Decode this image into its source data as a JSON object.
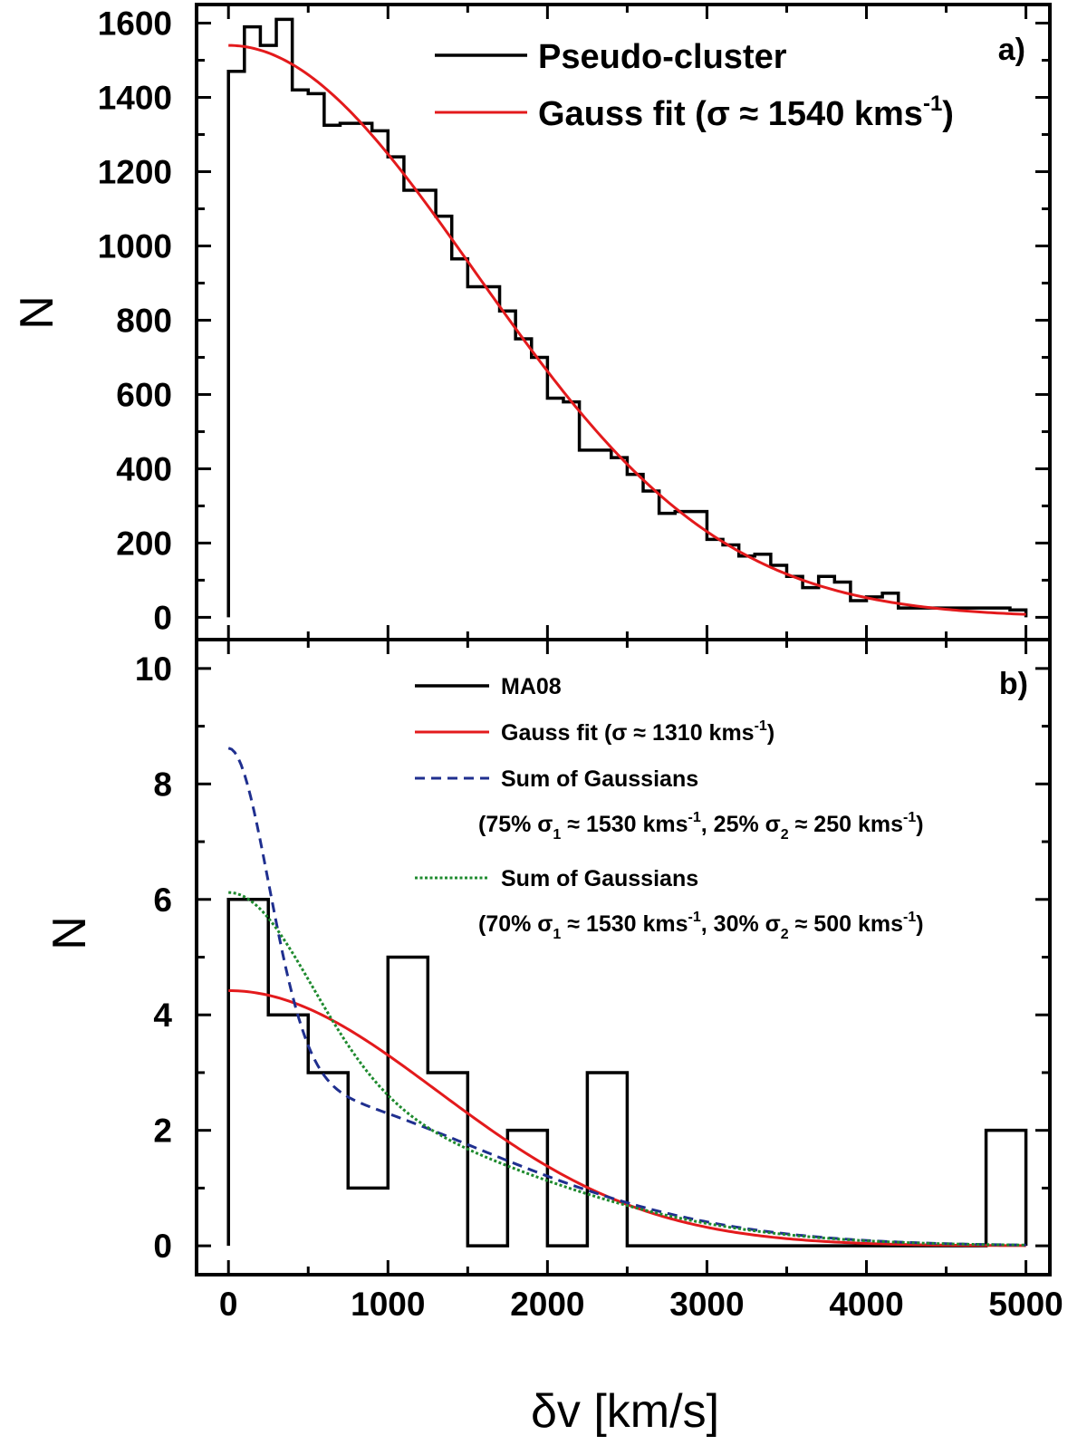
{
  "chart_data": [
    {
      "panel": "a",
      "type": "line",
      "panel_label": "a)",
      "ylabel": "N",
      "xlim": [
        -200,
        5150
      ],
      "ylim": [
        -60,
        1650
      ],
      "yticks": [
        0,
        200,
        400,
        600,
        800,
        1000,
        1200,
        1400,
        1600
      ],
      "histogram": {
        "name": "Pseudo-cluster",
        "color": "#000000",
        "bin_edges": [
          0,
          100,
          200,
          300,
          400,
          500,
          600,
          700,
          800,
          900,
          1000,
          1100,
          1200,
          1300,
          1400,
          1500,
          1600,
          1700,
          1800,
          1900,
          2000,
          2100,
          2200,
          2300,
          2400,
          2500,
          2600,
          2700,
          2800,
          2900,
          3000,
          3100,
          3200,
          3300,
          3400,
          3500,
          3600,
          3700,
          3800,
          3900,
          4000,
          4100,
          4200,
          4300,
          4400,
          4500,
          4600,
          4700,
          4800,
          4900,
          5000
        ],
        "counts": [
          1470,
          1590,
          1540,
          1610,
          1420,
          1410,
          1325,
          1330,
          1330,
          1310,
          1240,
          1150,
          1150,
          1080,
          965,
          890,
          890,
          825,
          750,
          700,
          590,
          580,
          450,
          450,
          430,
          385,
          340,
          280,
          285,
          285,
          210,
          195,
          165,
          170,
          140,
          110,
          80,
          110,
          95,
          45,
          55,
          65,
          25,
          25,
          25,
          25,
          25,
          25,
          25,
          20
        ]
      },
      "fit": {
        "name": "Gauss fit",
        "color": "#e31a1c",
        "amplitude": 1540,
        "sigma": 1540
      },
      "legend": {
        "hist": "Pseudo-cluster",
        "fit_prefix": "Gauss fit",
        "fit_sigma": "(σ ≈ 1540 kms",
        "fit_exp": "-1",
        "fit_close": ")"
      }
    },
    {
      "panel": "b",
      "type": "line",
      "panel_label": "b)",
      "xlabel": "δv [km/s]",
      "ylabel": "N",
      "xlim": [
        -200,
        5150
      ],
      "ylim": [
        -0.5,
        10.5
      ],
      "xticks": [
        0,
        1000,
        2000,
        3000,
        4000,
        5000
      ],
      "yticks": [
        0,
        2,
        4,
        6,
        8,
        10
      ],
      "histogram": {
        "name": "MA08",
        "color": "#000000",
        "bin_edges": [
          0,
          250,
          500,
          750,
          1000,
          1250,
          1500,
          1750,
          2000,
          2250,
          2500,
          2750,
          3000,
          3250,
          3500,
          3750,
          4000,
          4250,
          4500,
          4750,
          5000
        ],
        "counts": [
          6,
          4,
          3,
          1,
          5,
          3,
          0,
          2,
          0,
          3,
          0,
          0,
          0,
          0,
          0,
          0,
          0,
          0,
          0,
          2
        ]
      },
      "series": [
        {
          "name": "Gauss fit",
          "color": "#e31a1c",
          "style": "solid",
          "components": [
            {
              "weight": 1.0,
              "sigma": 1310
            }
          ],
          "amplitude": 4.42
        },
        {
          "name": "Sum of Gaussians",
          "color": "#1f2f8f",
          "style": "dashed",
          "components": [
            {
              "weight": 0.75,
              "sigma": 1530
            },
            {
              "weight": 0.25,
              "sigma": 250
            }
          ],
          "amplitude": 8.62
        },
        {
          "name": "Sum of Gaussians",
          "color": "#1e8a2e",
          "style": "dotted",
          "components": [
            {
              "weight": 0.7,
              "sigma": 1530
            },
            {
              "weight": 0.3,
              "sigma": 500
            }
          ],
          "amplitude": 6.12
        }
      ],
      "legend": {
        "hist": "MA08",
        "fit_prefix": "Gauss fit",
        "fit_sigma": "(σ ≈ 1310 kms",
        "fit_exp": "-1",
        "fit_close": ")",
        "sum1_title": "Sum of Gaussians",
        "sum1_detail": {
          "p1": "(75% σ",
          "s1": "1",
          "p2": " ≈ 1530 kms",
          "e1": "-1",
          "p3": ", 25% σ",
          "s2": "2",
          "p4": " ≈ 250 kms",
          "e2": "-1",
          "p5": ")"
        },
        "sum2_title": "Sum of Gaussians",
        "sum2_detail": {
          "p1": "(70% σ",
          "s1": "1",
          "p2": " ≈ 1530 kms",
          "e1": "-1",
          "p3": ", 30% σ",
          "s2": "2",
          "p4": " ≈ 500 kms",
          "e2": "-1",
          "p5": ")"
        }
      }
    }
  ]
}
